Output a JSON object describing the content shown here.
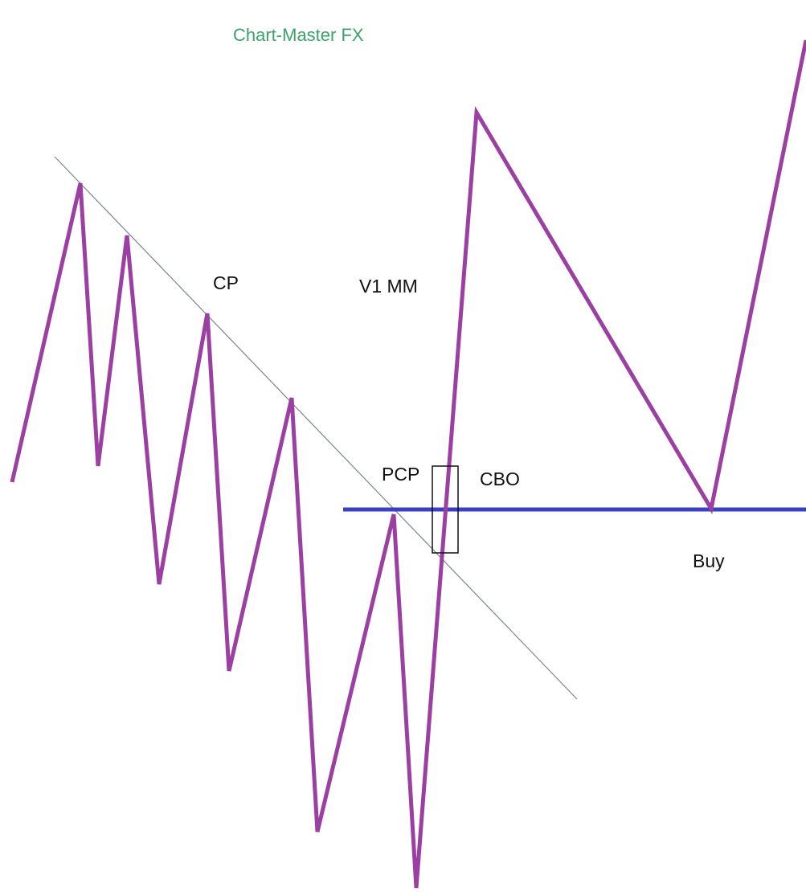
{
  "title": "Chart-Master FX",
  "labels": {
    "cp": "CP",
    "v1mm": "V1 MM",
    "pcp": "PCP",
    "cbo": "CBO",
    "buy": "Buy"
  }
}
